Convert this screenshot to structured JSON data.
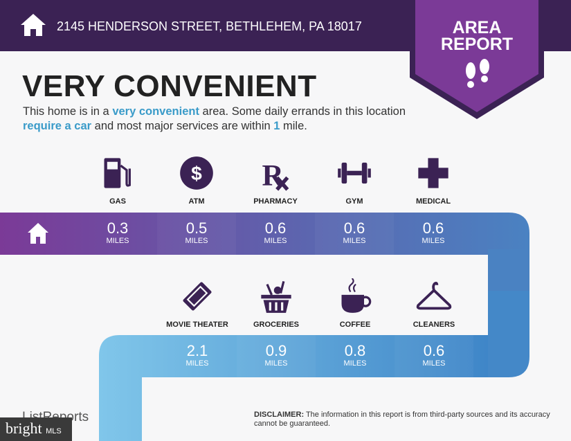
{
  "header": {
    "address": "2145 HENDERSON STREET, BETHLEHEM, PA 18017",
    "home_icon": "home-icon"
  },
  "badge": {
    "line1": "AREA",
    "line2": "REPORT",
    "icon": "footprints-icon"
  },
  "headline": "VERY CONVENIENT",
  "description": {
    "p1": "This home is in a ",
    "b1": "very convenient",
    "p2": " area. Some daily errands in this location ",
    "b2": "require a car",
    "p3": " and most major services are within ",
    "b3": "1",
    "p4": " mile."
  },
  "colors": {
    "header": "#3b2254",
    "badge": "#7b3a97",
    "accent": "#3a9bc9",
    "icon": "#3b2254"
  },
  "top_row": [
    {
      "label": "GAS",
      "value": "0.3",
      "unit": "MILES",
      "icon": "gas-pump-icon"
    },
    {
      "label": "ATM",
      "value": "0.5",
      "unit": "MILES",
      "icon": "dollar-icon"
    },
    {
      "label": "PHARMACY",
      "value": "0.6",
      "unit": "MILES",
      "icon": "rx-icon"
    },
    {
      "label": "GYM",
      "value": "0.6",
      "unit": "MILES",
      "icon": "dumbbell-icon"
    },
    {
      "label": "MEDICAL",
      "value": "0.6",
      "unit": "MILES",
      "icon": "cross-icon"
    }
  ],
  "bottom_row": [
    {
      "label": "MOVIE THEATER",
      "value": "2.1",
      "unit": "MILES",
      "icon": "ticket-icon"
    },
    {
      "label": "GROCERIES",
      "value": "0.9",
      "unit": "MILES",
      "icon": "basket-icon"
    },
    {
      "label": "COFFEE",
      "value": "0.8",
      "unit": "MILES",
      "icon": "coffee-icon"
    },
    {
      "label": "CLEANERS",
      "value": "0.6",
      "unit": "MILES",
      "icon": "hanger-icon"
    }
  ],
  "footer": {
    "logo": "ListReports",
    "disclaimer_label": "DISCLAIMER:",
    "disclaimer": " The information in this report is from third-party sources and its accuracy cannot be guaranteed.",
    "mls_main": "bright",
    "mls_sub": "MLS"
  }
}
